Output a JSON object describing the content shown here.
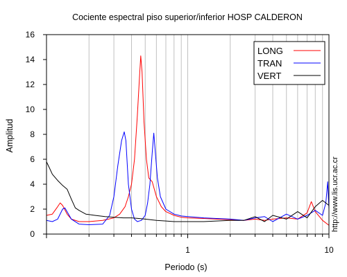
{
  "chart_data": {
    "type": "line",
    "title": "Cociente espectral piso superior/inferior  HOSP CALDERON",
    "xlabel": "Periodo (s)",
    "ylabel": "Amplitud",
    "xscale": "log",
    "xlim": [
      0.1,
      10
    ],
    "ylim": [
      0,
      16
    ],
    "x_tick_labels": [
      {
        "value": 1,
        "label": "1"
      },
      {
        "value": 10,
        "label": "10"
      }
    ],
    "y_ticks": [
      0,
      2,
      4,
      6,
      8,
      10,
      12,
      14,
      16
    ],
    "grid": "vertical",
    "legend_position": "top-right",
    "credit": "http://www.lis.ucr.ac.cr",
    "series": [
      {
        "name": "LONG",
        "color": "#ff0000",
        "points": [
          [
            0.1,
            1.5
          ],
          [
            0.11,
            1.6
          ],
          [
            0.12,
            2.2
          ],
          [
            0.125,
            2.5
          ],
          [
            0.13,
            2.3
          ],
          [
            0.14,
            1.6
          ],
          [
            0.15,
            1.2
          ],
          [
            0.17,
            1.0
          ],
          [
            0.2,
            1.0
          ],
          [
            0.25,
            1.1
          ],
          [
            0.3,
            1.3
          ],
          [
            0.33,
            1.6
          ],
          [
            0.36,
            2.2
          ],
          [
            0.38,
            3.0
          ],
          [
            0.4,
            4.0
          ],
          [
            0.42,
            6.0
          ],
          [
            0.44,
            9.5
          ],
          [
            0.455,
            12.5
          ],
          [
            0.465,
            14.3
          ],
          [
            0.475,
            13.0
          ],
          [
            0.49,
            9.0
          ],
          [
            0.51,
            6.0
          ],
          [
            0.53,
            4.5
          ],
          [
            0.56,
            4.2
          ],
          [
            0.6,
            3.0
          ],
          [
            0.65,
            2.2
          ],
          [
            0.7,
            1.8
          ],
          [
            0.8,
            1.5
          ],
          [
            0.9,
            1.35
          ],
          [
            1.0,
            1.3
          ],
          [
            1.3,
            1.25
          ],
          [
            1.6,
            1.2
          ],
          [
            2.0,
            1.15
          ],
          [
            2.5,
            1.1
          ],
          [
            3.0,
            1.2
          ],
          [
            3.5,
            1.1
          ],
          [
            4.0,
            1.2
          ],
          [
            5.0,
            1.3
          ],
          [
            6.0,
            1.2
          ],
          [
            7.0,
            1.7
          ],
          [
            7.5,
            2.6
          ],
          [
            8.0,
            1.8
          ],
          [
            9.0,
            1.1
          ],
          [
            10.0,
            0.7
          ]
        ]
      },
      {
        "name": "TRAN",
        "color": "#0000ff",
        "points": [
          [
            0.1,
            1.1
          ],
          [
            0.11,
            1.0
          ],
          [
            0.12,
            1.2
          ],
          [
            0.13,
            2.0
          ],
          [
            0.135,
            2.1
          ],
          [
            0.15,
            1.2
          ],
          [
            0.17,
            0.8
          ],
          [
            0.2,
            0.75
          ],
          [
            0.25,
            0.8
          ],
          [
            0.28,
            1.5
          ],
          [
            0.3,
            3.0
          ],
          [
            0.32,
            5.5
          ],
          [
            0.34,
            7.5
          ],
          [
            0.355,
            8.2
          ],
          [
            0.365,
            7.5
          ],
          [
            0.38,
            4.0
          ],
          [
            0.4,
            2.0
          ],
          [
            0.42,
            1.2
          ],
          [
            0.44,
            1.0
          ],
          [
            0.47,
            1.1
          ],
          [
            0.5,
            1.5
          ],
          [
            0.52,
            2.5
          ],
          [
            0.54,
            4.0
          ],
          [
            0.56,
            6.5
          ],
          [
            0.575,
            8.1
          ],
          [
            0.59,
            6.5
          ],
          [
            0.61,
            4.5
          ],
          [
            0.64,
            3.0
          ],
          [
            0.7,
            2.0
          ],
          [
            0.8,
            1.6
          ],
          [
            0.9,
            1.45
          ],
          [
            1.0,
            1.4
          ],
          [
            1.3,
            1.3
          ],
          [
            1.6,
            1.25
          ],
          [
            2.0,
            1.2
          ],
          [
            2.5,
            1.1
          ],
          [
            3.0,
            1.3
          ],
          [
            3.5,
            1.4
          ],
          [
            4.0,
            1.0
          ],
          [
            5.0,
            1.6
          ],
          [
            6.0,
            1.2
          ],
          [
            7.0,
            1.5
          ],
          [
            8.0,
            1.9
          ],
          [
            9.0,
            1.5
          ],
          [
            9.5,
            2.5
          ],
          [
            9.8,
            4.2
          ],
          [
            10.0,
            2.0
          ]
        ]
      },
      {
        "name": "VERT",
        "color": "#000000",
        "points": [
          [
            0.1,
            5.8
          ],
          [
            0.105,
            5.3
          ],
          [
            0.11,
            4.8
          ],
          [
            0.12,
            4.3
          ],
          [
            0.13,
            3.9
          ],
          [
            0.14,
            3.6
          ],
          [
            0.15,
            2.8
          ],
          [
            0.16,
            2.1
          ],
          [
            0.17,
            1.9
          ],
          [
            0.19,
            1.6
          ],
          [
            0.22,
            1.5
          ],
          [
            0.26,
            1.4
          ],
          [
            0.3,
            1.35
          ],
          [
            0.35,
            1.3
          ],
          [
            0.4,
            1.3
          ],
          [
            0.45,
            1.25
          ],
          [
            0.5,
            1.2
          ],
          [
            0.6,
            1.1
          ],
          [
            0.7,
            1.05
          ],
          [
            0.8,
            1.0
          ],
          [
            1.0,
            1.0
          ],
          [
            1.3,
            1.0
          ],
          [
            1.6,
            1.05
          ],
          [
            2.0,
            1.1
          ],
          [
            2.5,
            1.1
          ],
          [
            3.0,
            1.4
          ],
          [
            3.5,
            1.0
          ],
          [
            4.0,
            1.5
          ],
          [
            5.0,
            1.2
          ],
          [
            6.0,
            1.8
          ],
          [
            7.0,
            1.3
          ],
          [
            8.0,
            2.2
          ],
          [
            9.0,
            2.7
          ],
          [
            10.0,
            2.3
          ]
        ]
      }
    ]
  }
}
